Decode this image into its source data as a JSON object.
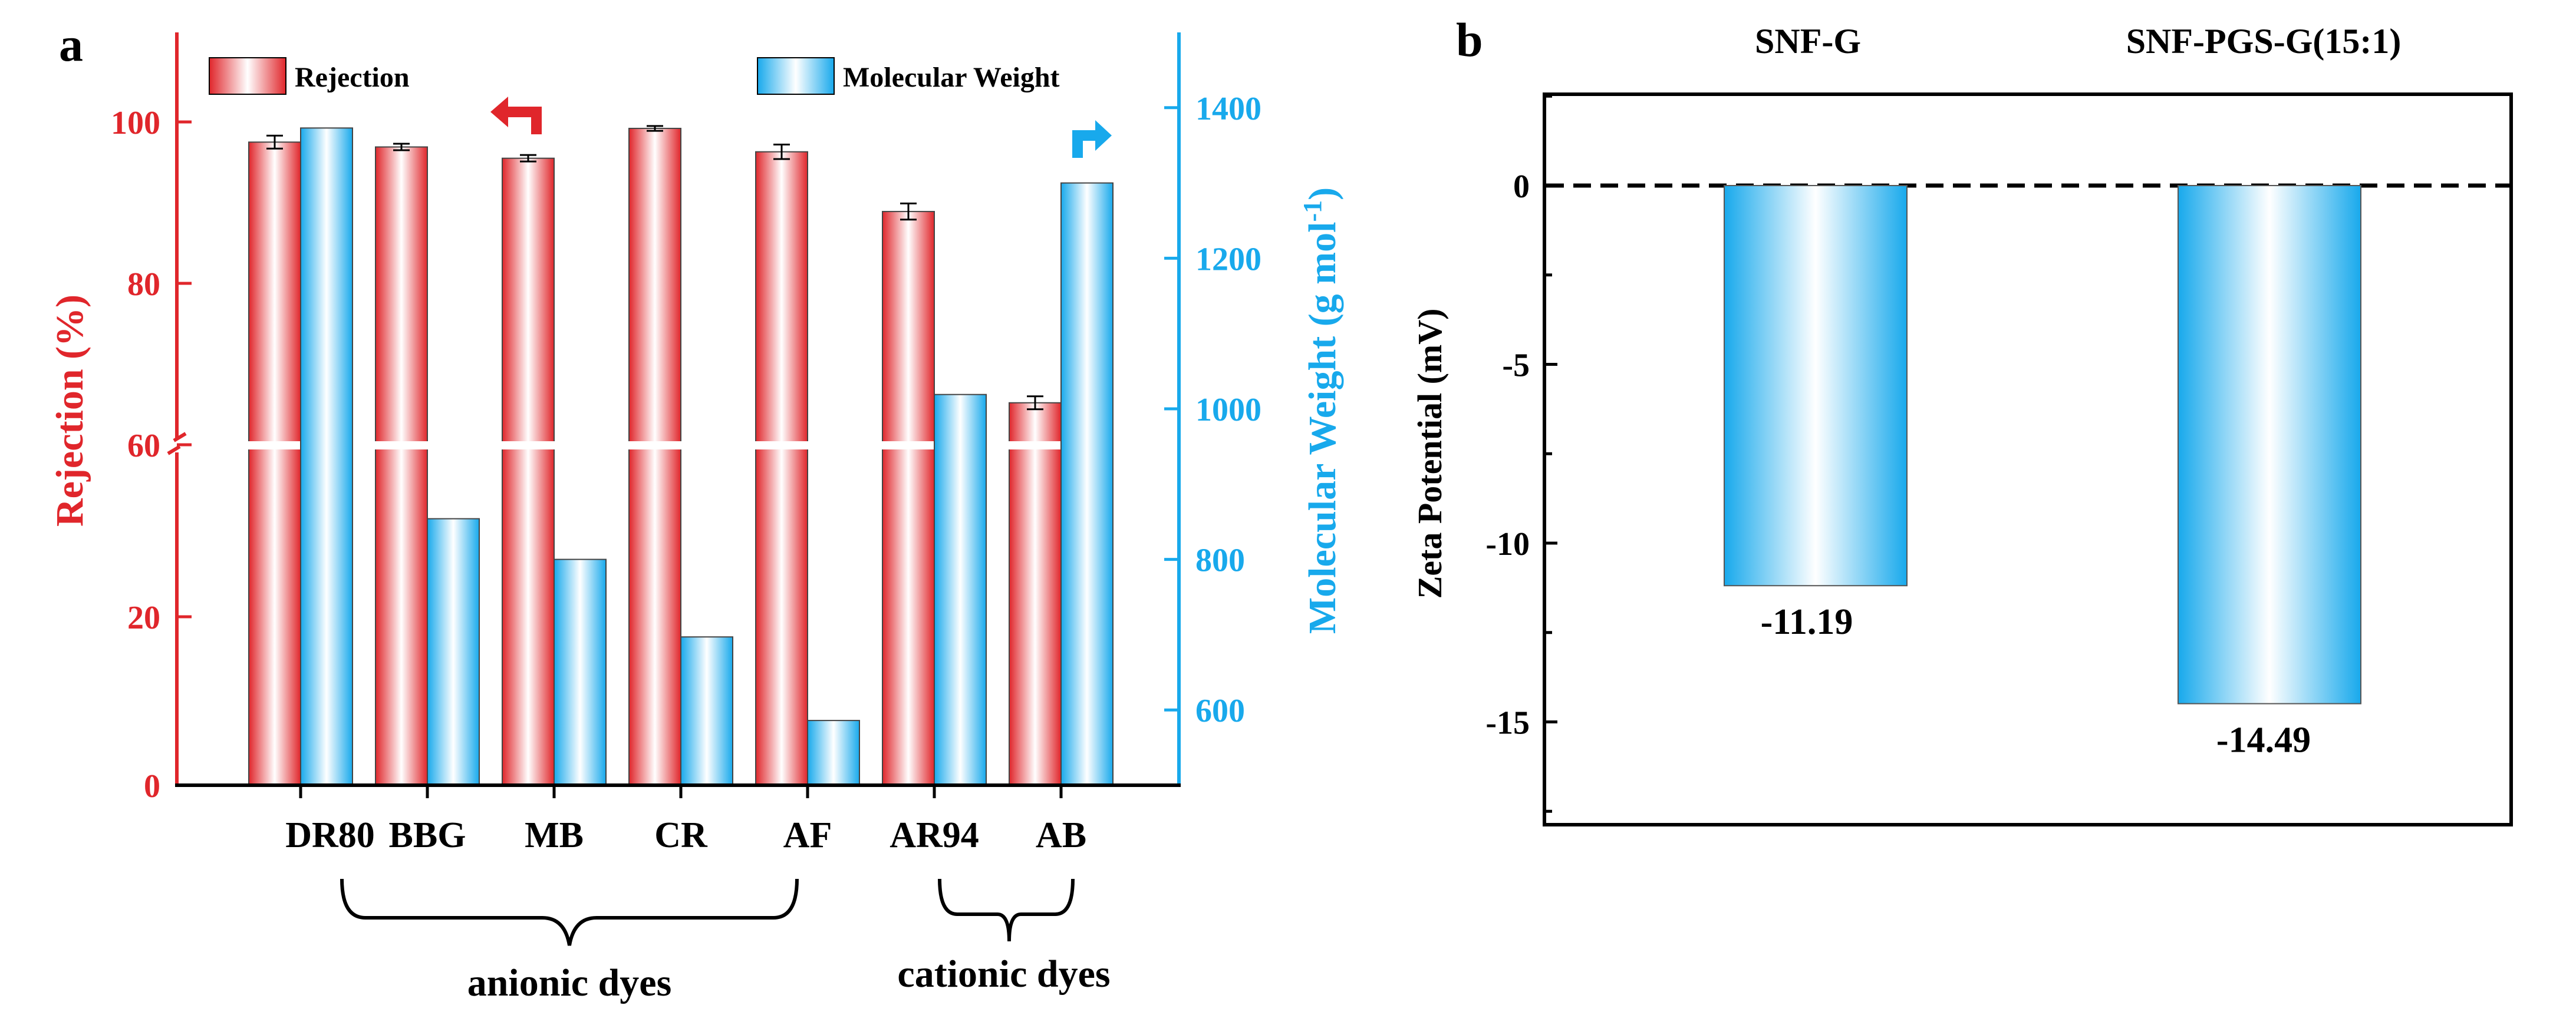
{
  "chart_data": [
    {
      "panel": "a",
      "type": "bar",
      "categories": [
        "DR80",
        "BBG",
        "MB",
        "CR",
        "AF",
        "AR94",
        "AB"
      ],
      "series": [
        {
          "name": "Rejection",
          "axis": "left",
          "color": "#e0262b",
          "values": [
            97.5,
            96.9,
            95.5,
            99.2,
            96.3,
            88.9,
            65.2
          ],
          "errors": [
            0.8,
            0.4,
            0.4,
            0.3,
            0.9,
            1.0,
            0.8
          ]
        },
        {
          "name": "Molecular Weight",
          "axis": "right",
          "color": "#18a9ec",
          "values": [
            1373,
            854,
            800,
            697,
            586,
            1019,
            1300
          ]
        }
      ],
      "ylabel": "Rejection (%)",
      "y2label_main": "Molecular Weight (g mol",
      "y2label_sup": "-1",
      "y2label_end": ")",
      "ylim": [
        0,
        110
      ],
      "y_axis_break": [
        20,
        60
      ],
      "y_ticks_lower": [
        0,
        20
      ],
      "y_ticks_upper": [
        60,
        80,
        100
      ],
      "y2lim": [
        500,
        1500
      ],
      "y2_ticks": [
        600,
        800,
        1000,
        1200,
        1400
      ],
      "groups": [
        {
          "label": "anionic dyes",
          "from": "BBG",
          "to": "AF"
        },
        {
          "label": "cationic dyes",
          "from": "AR94",
          "to": "AB"
        }
      ]
    },
    {
      "panel": "b",
      "type": "bar",
      "categories": [
        "SNF-G",
        "SNF-PGS-G(15:1)"
      ],
      "values": [
        -11.19,
        -14.49
      ],
      "value_labels": [
        "-11.19",
        "-14.49"
      ],
      "ylabel": "Zeta Potential (mV)",
      "ylim": [
        -17.5,
        2.5
      ],
      "y_ticks": [
        0,
        -5,
        -10,
        -15
      ],
      "reference_line": 0,
      "color": "#18a9ec"
    }
  ],
  "panel_labels": [
    "a",
    "b"
  ]
}
